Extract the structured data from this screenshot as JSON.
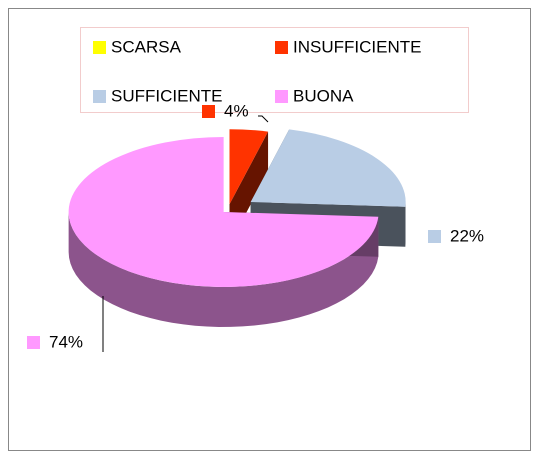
{
  "chart_data": {
    "type": "pie",
    "categories": [
      "SCARSA",
      "INSUFFICIENTE",
      "SUFFICIENTE",
      "BUONA"
    ],
    "values": [
      0,
      4,
      22,
      74
    ],
    "value_labels": [
      null,
      "4%",
      "22%",
      "74%"
    ],
    "colors": [
      "#ffff00",
      "#ff3300",
      "#b9cde5",
      "#ff99ff"
    ],
    "legend": "top"
  }
}
